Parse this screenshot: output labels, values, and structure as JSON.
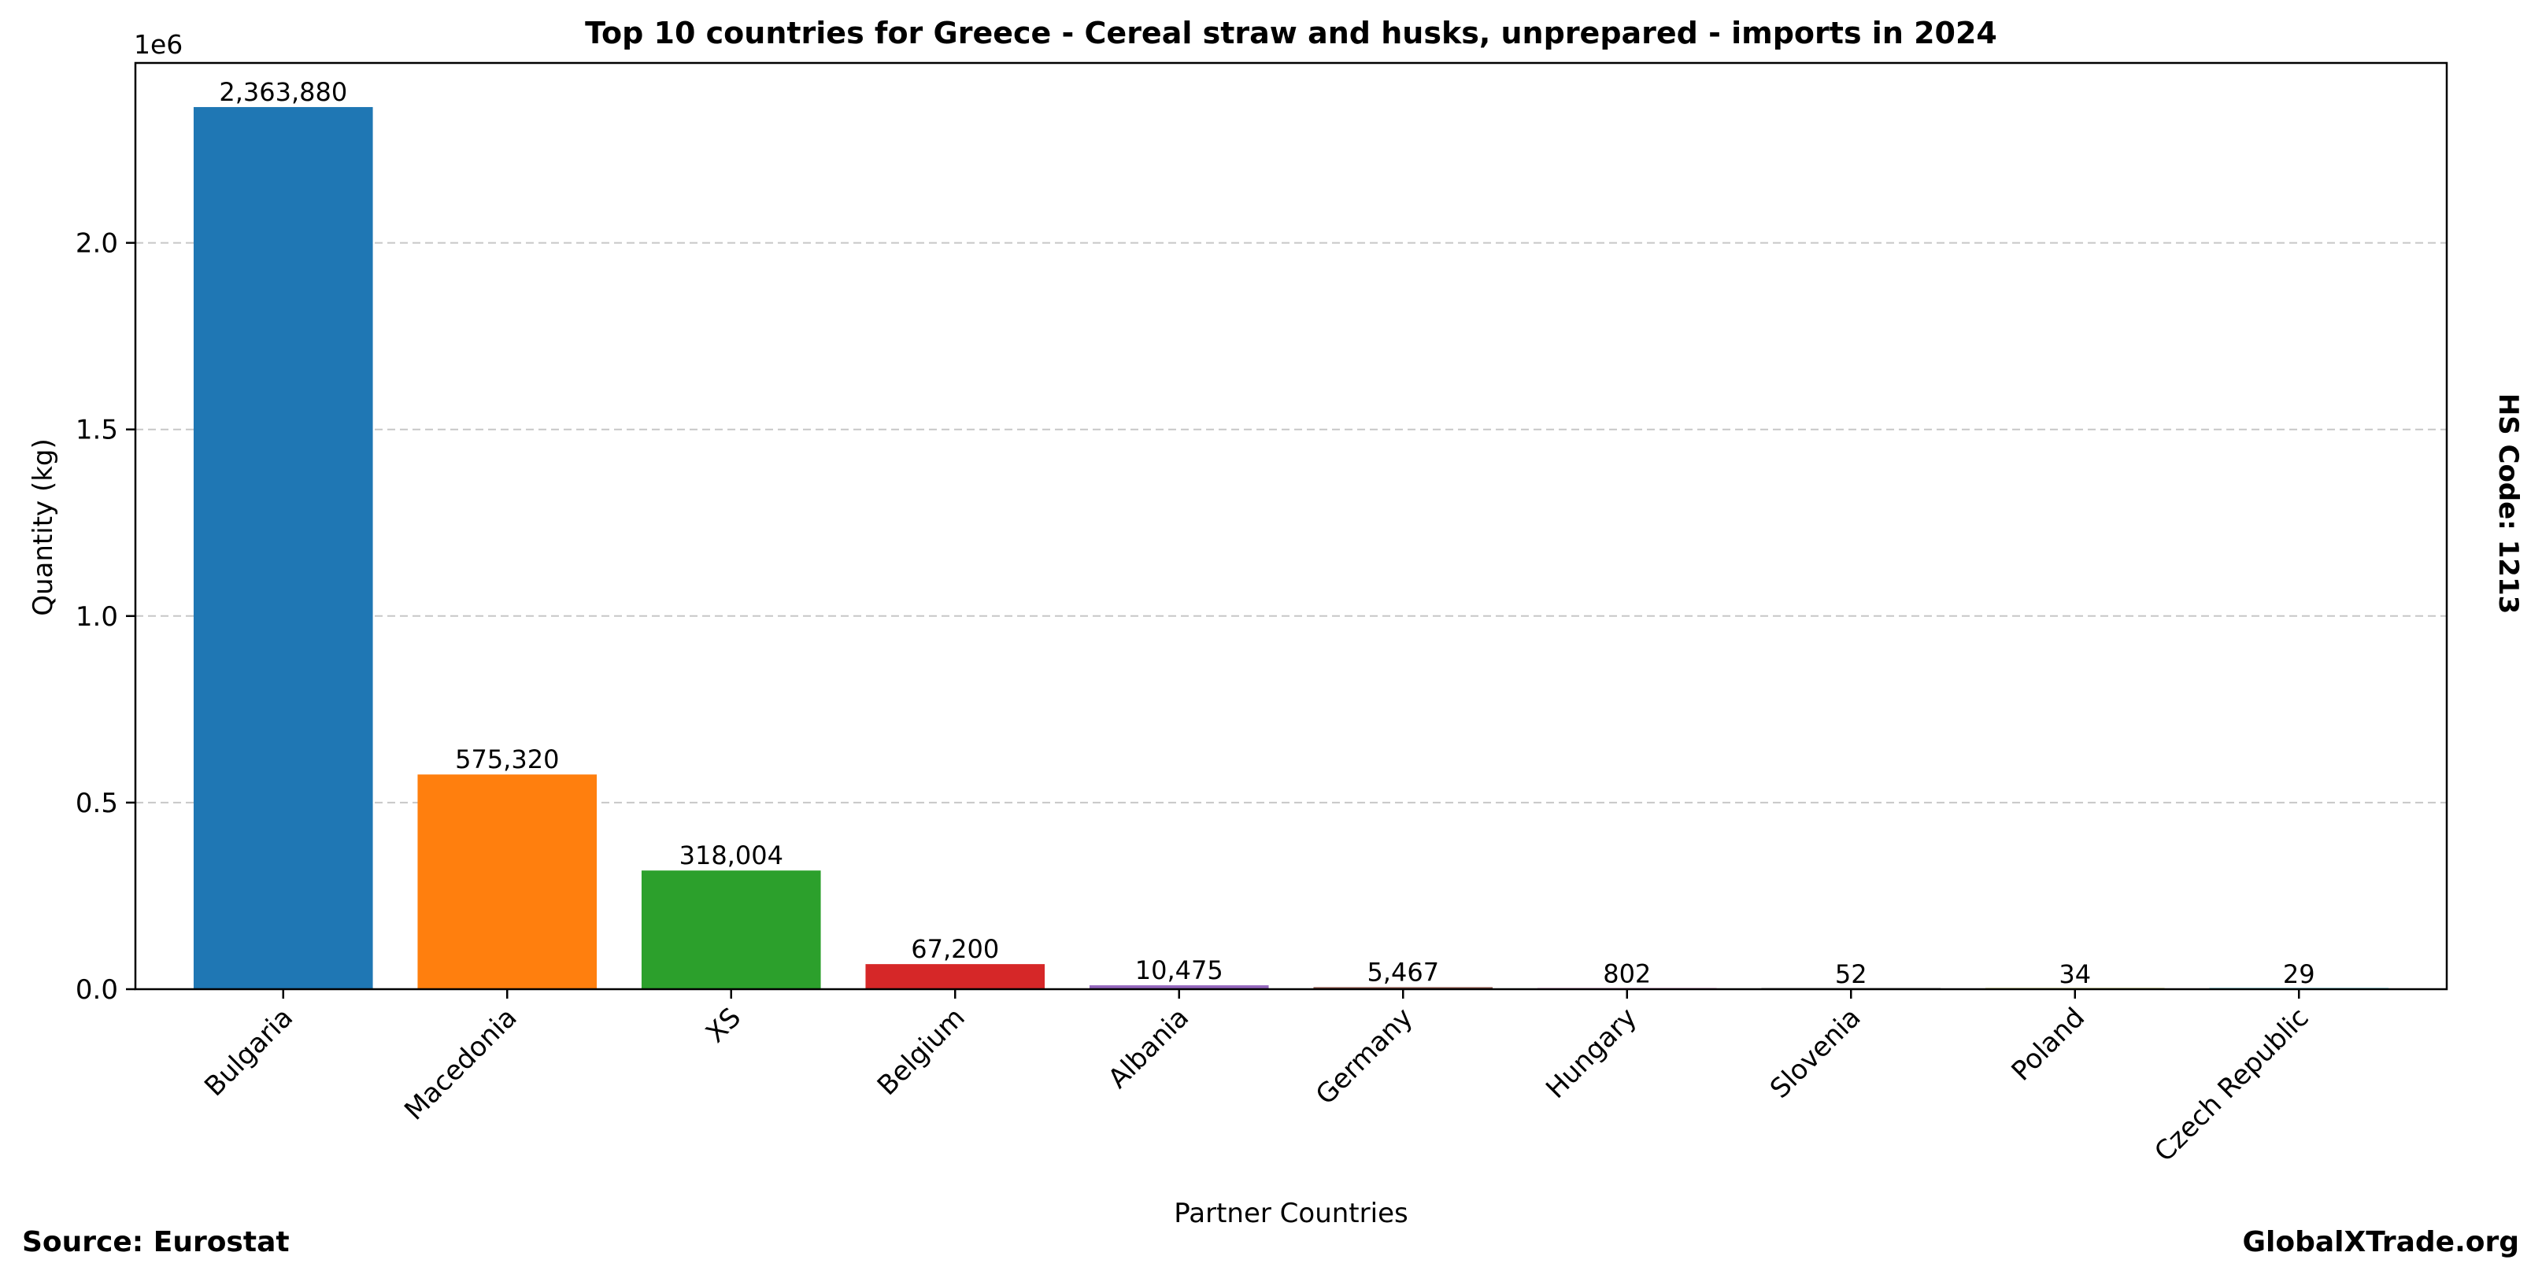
{
  "chart_data": {
    "type": "bar",
    "title": "Top 10 countries for Greece - Cereal straw and husks, unprepared - imports in 2024",
    "xlabel": "Partner Countries",
    "ylabel": "Quantity (kg)",
    "offset_label": "1e6",
    "side_label": "HS Code: 1213",
    "source_label": "Source: Eurostat",
    "brand_label": "GlobalXTrade.org",
    "categories": [
      "Bulgaria",
      "Macedonia",
      "XS",
      "Belgium",
      "Albania",
      "Germany",
      "Hungary",
      "Slovenia",
      "Poland",
      "Czech Republic"
    ],
    "values": [
      2363880,
      575320,
      318004,
      67200,
      10475,
      5467,
      802,
      52,
      34,
      29
    ],
    "value_labels": [
      "2,363,880",
      "575,320",
      "318,004",
      "67,200",
      "10,475",
      "5,467",
      "802",
      "52",
      "34",
      "29"
    ],
    "colors": [
      "#1f77b4",
      "#ff7f0e",
      "#2ca02c",
      "#d62728",
      "#9467bd",
      "#8c564b",
      "#e377c2",
      "#7f7f7f",
      "#bcbd22",
      "#17becf"
    ],
    "ylim": [
      0,
      2482074
    ],
    "yticks": [
      0,
      500000,
      1000000,
      1500000,
      2000000
    ],
    "ytick_labels": [
      "0.0",
      "0.5",
      "1.0",
      "1.5",
      "2.0"
    ],
    "grid": true,
    "grid_style": "dashed",
    "legend": "none"
  }
}
